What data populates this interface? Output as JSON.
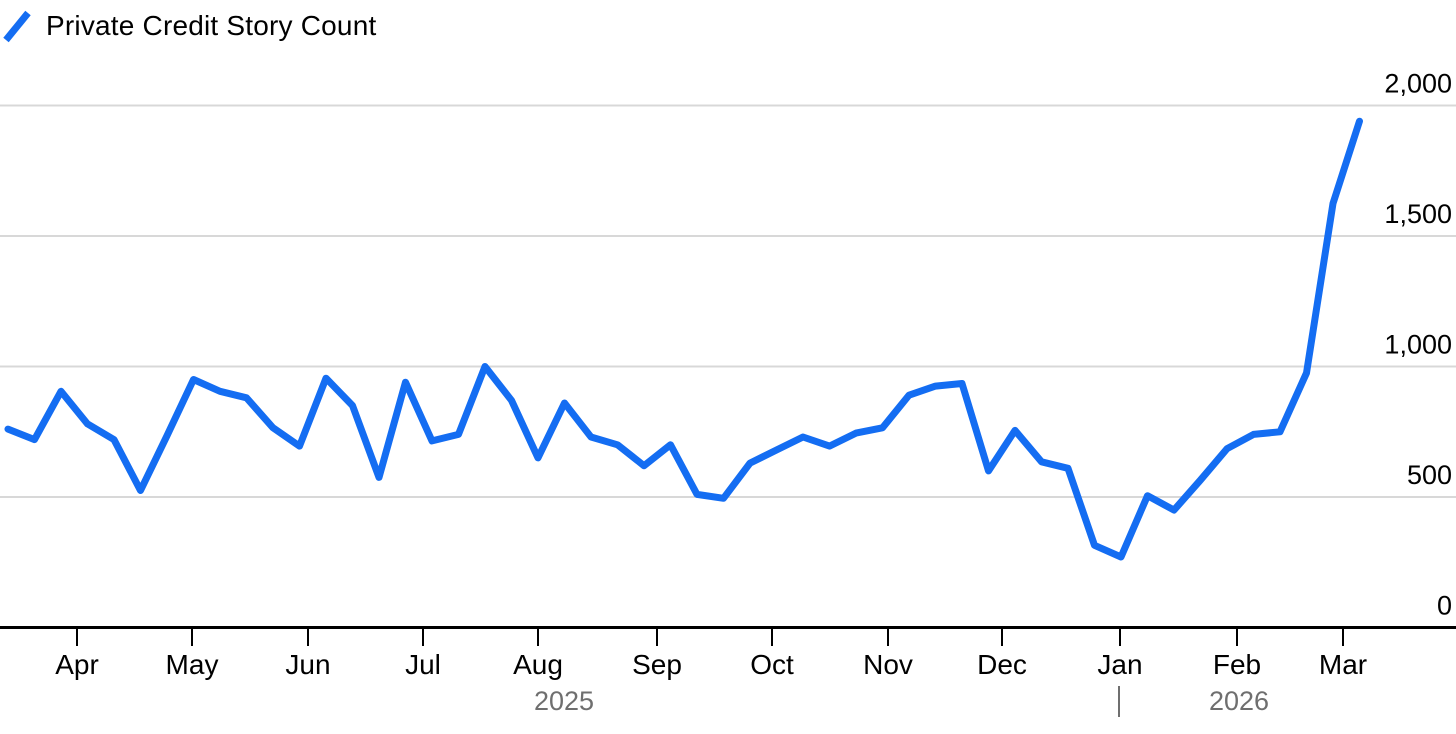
{
  "legend": {
    "marker_icon": "blue-line-segment",
    "label": "Private Credit Story Count"
  },
  "colors": {
    "line": "#146df2",
    "grid": "#d8d8d8",
    "axis": "#000000",
    "tick_text": "#000000",
    "year_text": "#6f6f6f",
    "background": "#ffffff"
  },
  "chart_data": {
    "type": "line",
    "title": "Private Credit Story Count",
    "legend_position": "top-left",
    "y_axis_side": "right",
    "grid": true,
    "frequency": "weekly",
    "xlabel": "",
    "ylabel": "",
    "ylim": [
      0,
      2100
    ],
    "x_range_note": "weekly points, mid-March 2025 through early March 2026",
    "x_tick_labels": [
      "Apr",
      "May",
      "Jun",
      "Jul",
      "Aug",
      "Sep",
      "Oct",
      "Nov",
      "Dec",
      "Jan",
      "Feb",
      "Mar"
    ],
    "year_labels": [
      "2025",
      "2026"
    ],
    "y_axis": [
      {
        "value": 2000,
        "label": "2,000"
      },
      {
        "value": 1500,
        "label": "1,500"
      },
      {
        "value": 1000,
        "label": "1,000"
      },
      {
        "value": 500,
        "label": "500"
      },
      {
        "value": 0,
        "label": "0"
      }
    ],
    "series": [
      {
        "name": "Private Credit Story Count",
        "values": [
          760,
          720,
          905,
          780,
          720,
          525,
          735,
          950,
          905,
          880,
          765,
          695,
          955,
          850,
          575,
          940,
          715,
          740,
          1000,
          870,
          650,
          860,
          730,
          700,
          620,
          700,
          510,
          495,
          630,
          680,
          730,
          695,
          745,
          765,
          890,
          925,
          935,
          600,
          755,
          635,
          610,
          315,
          270,
          505,
          450,
          565,
          685,
          740,
          750,
          975,
          1625,
          1940
        ]
      }
    ]
  }
}
